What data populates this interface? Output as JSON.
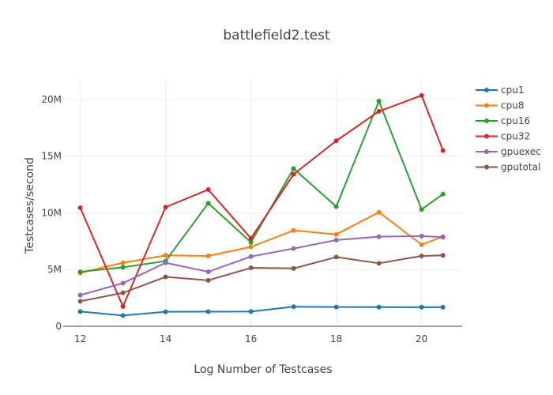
{
  "chart_data": {
    "type": "line",
    "title": "battlefield2.test",
    "xlabel": "Log Number of Testcases",
    "ylabel": "Testcases/second",
    "xlim": [
      11.6,
      20.95
    ],
    "ylim": [
      0,
      21800000
    ],
    "x_ticks": [
      12,
      14,
      16,
      18,
      20
    ],
    "x_tick_labels": [
      "12",
      "14",
      "16",
      "18",
      "20"
    ],
    "y_ticks": [
      0,
      5000000,
      10000000,
      15000000,
      20000000
    ],
    "y_tick_labels": [
      "0",
      "5M",
      "10M",
      "15M",
      "20M"
    ],
    "grid": true,
    "legend_position": "right",
    "x": [
      12,
      13,
      14,
      15,
      16,
      17,
      18,
      19,
      20,
      20.5
    ],
    "series": [
      {
        "name": "cpu1",
        "color": "#1f77b4",
        "values": [
          1300000,
          950000,
          1280000,
          1290000,
          1300000,
          1720000,
          1700000,
          1690000,
          1680000,
          1680000
        ]
      },
      {
        "name": "cpu8",
        "color": "#ff7f0e",
        "values": [
          4700000,
          5600000,
          6250000,
          6200000,
          7000000,
          8450000,
          8100000,
          10050000,
          7200000,
          7900000
        ]
      },
      {
        "name": "cpu16",
        "color": "#2ca02c",
        "values": [
          4800000,
          5200000,
          5750000,
          10850000,
          7400000,
          13900000,
          10550000,
          19850000,
          10300000,
          11650000
        ]
      },
      {
        "name": "cpu32",
        "color": "#d62728",
        "values": [
          10450000,
          1750000,
          10500000,
          12050000,
          7750000,
          13400000,
          16350000,
          18950000,
          20350000,
          15500000
        ]
      },
      {
        "name": "gpuexec",
        "color": "#9467bd",
        "values": [
          2750000,
          3800000,
          5600000,
          4800000,
          6150000,
          6850000,
          7600000,
          7900000,
          7950000,
          7850000
        ]
      },
      {
        "name": "gputotal",
        "color": "#8c564b",
        "values": [
          2200000,
          2950000,
          4350000,
          4050000,
          5150000,
          5100000,
          6100000,
          5550000,
          6200000,
          6250000
        ]
      }
    ]
  }
}
